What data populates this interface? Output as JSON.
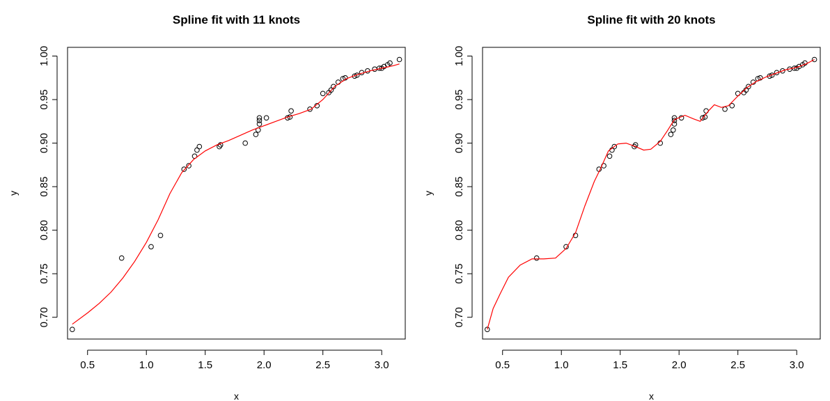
{
  "chart_data": [
    {
      "type": "scatter",
      "title": "Spline fit with 11 knots",
      "xlabel": "x",
      "ylabel": "y",
      "xlim": [
        0.33,
        3.2
      ],
      "ylim": [
        0.675,
        1.01
      ],
      "xticks": [
        "0.5",
        "1.0",
        "1.5",
        "2.0",
        "2.5",
        "3.0"
      ],
      "yticks": [
        "0.70",
        "0.75",
        "0.80",
        "0.85",
        "0.90",
        "0.95",
        "1.00"
      ],
      "grid": false,
      "series": [
        {
          "kind": "points",
          "x": [
            0.37,
            0.79,
            1.04,
            1.12,
            1.32,
            1.36,
            1.41,
            1.43,
            1.45,
            1.62,
            1.63,
            1.84,
            1.93,
            1.95,
            1.96,
            1.96,
            1.96,
            2.02,
            2.2,
            2.22,
            2.23,
            2.39,
            2.45,
            2.5,
            2.55,
            2.57,
            2.59,
            2.63,
            2.67,
            2.69,
            2.77,
            2.79,
            2.83,
            2.88,
            2.94,
            2.98,
            3.0,
            3.02,
            3.05,
            3.07,
            3.15
          ],
          "y": [
            0.686,
            0.768,
            0.781,
            0.794,
            0.87,
            0.874,
            0.885,
            0.892,
            0.896,
            0.896,
            0.898,
            0.9,
            0.91,
            0.915,
            0.922,
            0.926,
            0.929,
            0.929,
            0.929,
            0.93,
            0.937,
            0.939,
            0.943,
            0.957,
            0.958,
            0.961,
            0.965,
            0.97,
            0.974,
            0.975,
            0.977,
            0.978,
            0.981,
            0.983,
            0.985,
            0.986,
            0.986,
            0.988,
            0.99,
            0.992,
            0.996
          ]
        },
        {
          "kind": "line",
          "color": "#ff0000",
          "x": [
            0.37,
            0.5,
            0.6,
            0.7,
            0.8,
            0.9,
            1.0,
            1.1,
            1.2,
            1.3,
            1.4,
            1.5,
            1.6,
            1.7,
            1.8,
            1.9,
            2.0,
            2.1,
            2.2,
            2.3,
            2.4,
            2.5,
            2.6,
            2.7,
            2.8,
            2.9,
            3.0,
            3.1,
            3.15
          ],
          "y": [
            0.692,
            0.705,
            0.716,
            0.729,
            0.745,
            0.764,
            0.786,
            0.812,
            0.842,
            0.866,
            0.881,
            0.891,
            0.898,
            0.903,
            0.909,
            0.915,
            0.92,
            0.925,
            0.93,
            0.934,
            0.939,
            0.95,
            0.965,
            0.974,
            0.979,
            0.983,
            0.986,
            0.989,
            0.991
          ]
        }
      ]
    },
    {
      "type": "scatter",
      "title": "Spline fit with 20 knots",
      "xlabel": "x",
      "ylabel": "y",
      "xlim": [
        0.33,
        3.2
      ],
      "ylim": [
        0.675,
        1.01
      ],
      "xticks": [
        "0.5",
        "1.0",
        "1.5",
        "2.0",
        "2.5",
        "3.0"
      ],
      "yticks": [
        "0.70",
        "0.75",
        "0.80",
        "0.85",
        "0.90",
        "0.95",
        "1.00"
      ],
      "grid": false,
      "series": [
        {
          "kind": "points",
          "x": [
            0.37,
            0.79,
            1.04,
            1.12,
            1.32,
            1.36,
            1.41,
            1.43,
            1.45,
            1.62,
            1.63,
            1.84,
            1.93,
            1.95,
            1.96,
            1.96,
            1.96,
            2.02,
            2.2,
            2.22,
            2.23,
            2.39,
            2.45,
            2.5,
            2.55,
            2.57,
            2.59,
            2.63,
            2.67,
            2.69,
            2.77,
            2.79,
            2.83,
            2.88,
            2.94,
            2.98,
            3.0,
            3.02,
            3.05,
            3.07,
            3.15
          ],
          "y": [
            0.686,
            0.768,
            0.781,
            0.794,
            0.87,
            0.874,
            0.885,
            0.892,
            0.896,
            0.896,
            0.898,
            0.9,
            0.91,
            0.915,
            0.922,
            0.926,
            0.929,
            0.929,
            0.929,
            0.93,
            0.937,
            0.939,
            0.943,
            0.957,
            0.958,
            0.961,
            0.965,
            0.97,
            0.974,
            0.975,
            0.977,
            0.978,
            0.981,
            0.983,
            0.985,
            0.986,
            0.986,
            0.988,
            0.99,
            0.992,
            0.996
          ]
        },
        {
          "kind": "line",
          "color": "#ff0000",
          "x": [
            0.37,
            0.42,
            0.48,
            0.55,
            0.65,
            0.75,
            0.85,
            0.95,
            1.04,
            1.12,
            1.2,
            1.28,
            1.33,
            1.4,
            1.48,
            1.55,
            1.63,
            1.7,
            1.76,
            1.84,
            1.9,
            1.96,
            2.05,
            2.12,
            2.18,
            2.25,
            2.3,
            2.36,
            2.42,
            2.5,
            2.58,
            2.66,
            2.74,
            2.82,
            2.9,
            3.0,
            3.08,
            3.15
          ],
          "y": [
            0.686,
            0.71,
            0.727,
            0.746,
            0.76,
            0.767,
            0.767,
            0.768,
            0.779,
            0.797,
            0.828,
            0.856,
            0.87,
            0.891,
            0.899,
            0.9,
            0.896,
            0.892,
            0.893,
            0.902,
            0.914,
            0.927,
            0.932,
            0.928,
            0.925,
            0.937,
            0.944,
            0.941,
            0.943,
            0.954,
            0.964,
            0.971,
            0.976,
            0.98,
            0.984,
            0.987,
            0.991,
            0.996
          ]
        }
      ]
    }
  ]
}
